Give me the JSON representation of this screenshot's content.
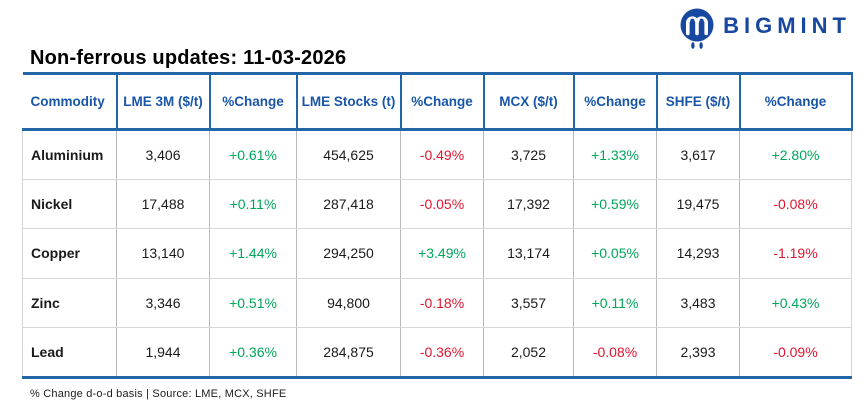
{
  "brand": {
    "name": "BIGMINT"
  },
  "chart_data": {
    "type": "table",
    "title": "Non-ferrous updates: 11-03-2026",
    "columns": [
      "Commodity",
      "LME 3M ($/t)",
      "%Change",
      "LME Stocks (t)",
      "%Change",
      "MCX ($/t)",
      "%Change",
      "SHFE ($/t)",
      "%Change"
    ],
    "rows": [
      [
        "Aluminium",
        "3,406",
        "+0.61%",
        "454,625",
        "-0.49%",
        "3,725",
        "+1.33%",
        "3,617",
        "+2.80%"
      ],
      [
        "Nickel",
        "17,488",
        "+0.11%",
        "287,418",
        "-0.05%",
        "17,392",
        "+0.59%",
        "19,475",
        "-0.08%"
      ],
      [
        "Copper",
        "13,140",
        "+1.44%",
        "294,250",
        "+3.49%",
        "13,174",
        "+0.05%",
        "14,293",
        "-1.19%"
      ],
      [
        "Zinc",
        "3,346",
        "+0.51%",
        "94,800",
        "-0.18%",
        "3,557",
        "+0.11%",
        "3,483",
        "+0.43%"
      ],
      [
        "Lead",
        "1,944",
        "+0.36%",
        "284,875",
        "-0.36%",
        "2,052",
        "-0.08%",
        "2,393",
        "-0.09%"
      ]
    ],
    "footnote": "% Change d-o-d basis | Source: LME, MCX, SHFE",
    "legend_position": "none",
    "grid": "light-gray row and column separators, blue header rules"
  },
  "colors": {
    "up": "#00A65A",
    "down": "#E1142E",
    "border": "#2265A8",
    "header_text": "#1A56A8",
    "brand": "#17479E"
  }
}
